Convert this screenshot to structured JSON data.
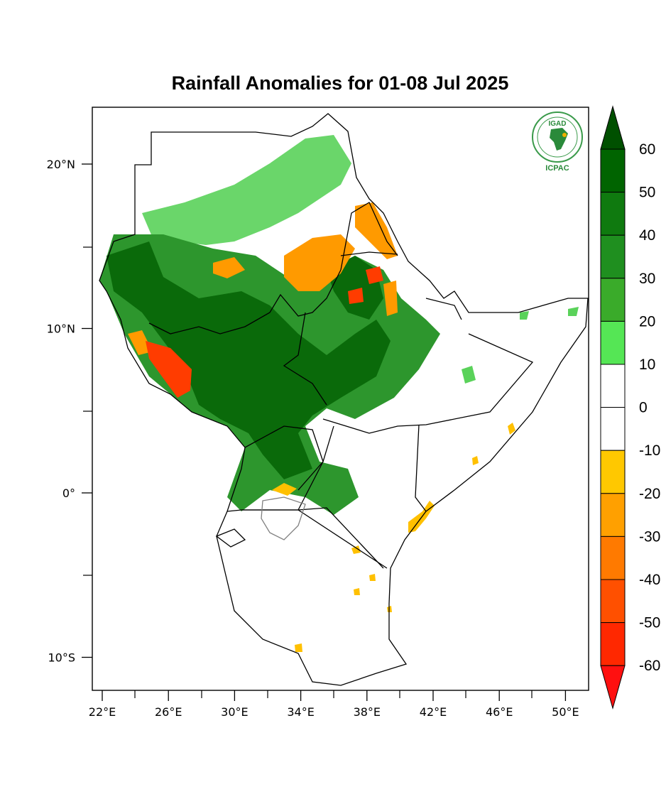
{
  "title": "Rainfall Anomalies for 01-08 Jul 2025",
  "logo": {
    "top_text": "IGAD",
    "bottom_text": "ICPAC"
  },
  "axes": {
    "x_ticks": [
      {
        "label": "22°E",
        "lon": 22
      },
      {
        "label": "26°E",
        "lon": 26
      },
      {
        "label": "30°E",
        "lon": 30
      },
      {
        "label": "34°E",
        "lon": 34
      },
      {
        "label": "38°E",
        "lon": 38
      },
      {
        "label": "42°E",
        "lon": 42
      },
      {
        "label": "46°E",
        "lon": 46
      },
      {
        "label": "50°E",
        "lon": 50
      }
    ],
    "y_ticks": [
      {
        "label": "20°N",
        "lat": 20
      },
      {
        "label": "10°N",
        "lat": 10
      },
      {
        "label": "0°",
        "lat": 0
      },
      {
        "label": "10°S",
        "lat": -10
      }
    ],
    "lon_range": [
      21.5,
      51.5
    ],
    "lat_range": [
      -12,
      23.5
    ]
  },
  "colorbar": {
    "levels": [
      "60",
      "50",
      "40",
      "30",
      "20",
      "10",
      "0",
      "-10",
      "-20",
      "-30",
      "-40",
      "-50",
      "-60"
    ],
    "colors": [
      "#006400",
      "#0f7a0f",
      "#1f8f1f",
      "#3aab2a",
      "#55e655",
      "#ffffff",
      "#ffffff",
      "#ffc800",
      "#ffa000",
      "#ff7a00",
      "#ff5000",
      "#ff2800",
      "#ff1010"
    ],
    "max_color": "#005000",
    "min_color": "#ff1010"
  },
  "palette": {
    "wet_dark": "#0a6a0a",
    "wet_mid": "#2d962d",
    "wet_light": "#5ad25a",
    "dry_light": "#ffc000",
    "dry_mid": "#ff9a00",
    "dry_strong": "#ff3c00"
  }
}
